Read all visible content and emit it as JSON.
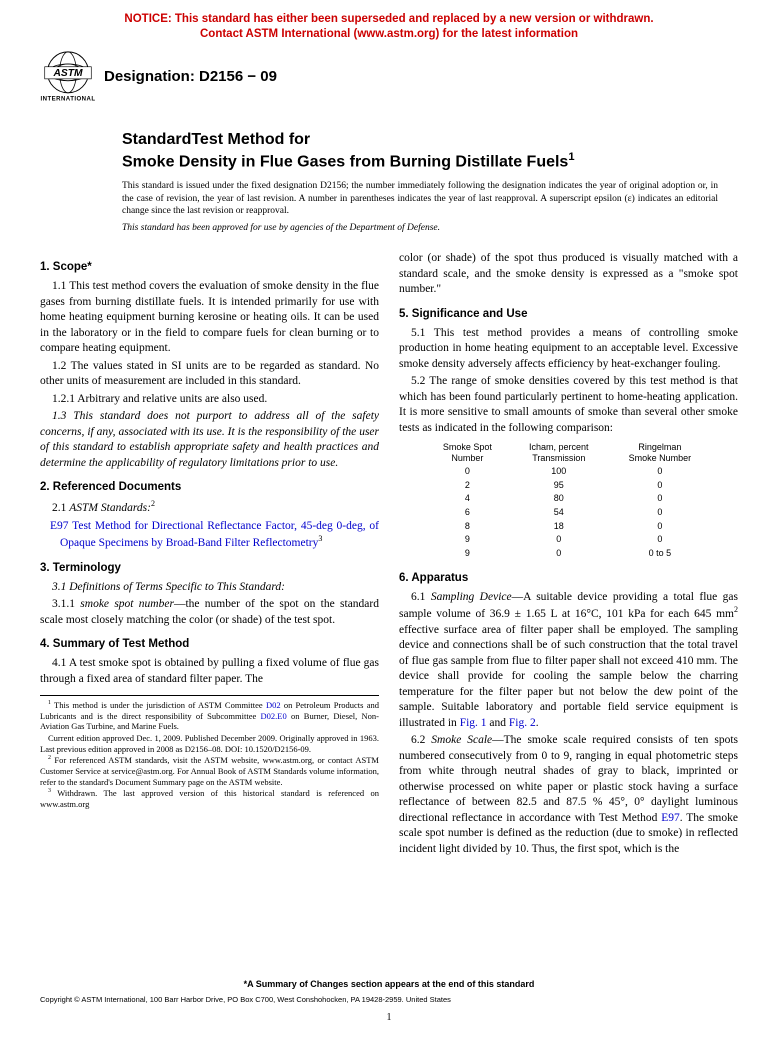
{
  "notice": {
    "line1": "NOTICE: This standard has either been superseded and replaced by a new version or withdrawn.",
    "line2": "Contact ASTM International (www.astm.org) for the latest information"
  },
  "designation": "Designation: D2156 − 09",
  "title": {
    "l1": "StandardTest Method for",
    "l2": "Smoke Density in Flue Gases from Burning Distillate Fuels",
    "sup": "1"
  },
  "intro": "This standard is issued under the fixed designation D2156; the number immediately following the designation indicates the year of original adoption or, in the case of revision, the year of last revision. A number in parentheses indicates the year of last reapproval. A superscript epsilon (ε) indicates an editorial change since the last revision or reapproval.",
  "intro2": "This standard has been approved for use by agencies of the Department of Defense.",
  "sections": {
    "scope": {
      "head": "1. Scope*",
      "p1": "1.1 This test method covers the evaluation of smoke density in the flue gases from burning distillate fuels. It is intended primarily for use with home heating equipment burning kerosine or heating oils. It can be used in the laboratory or in the field to compare fuels for clean burning or to compare heating equipment.",
      "p2": "1.2 The values stated in SI units are to be regarded as standard. No other units of measurement are included in this standard.",
      "p2a": "1.2.1 Arbitrary and relative units are also used.",
      "p3": "1.3 This standard does not purport to address all of the safety concerns, if any, associated with its use. It is the responsibility of the user of this standard to establish appropriate safety and health practices and determine the applicability of regulatory limitations prior to use."
    },
    "refdocs": {
      "head": "2. Referenced Documents",
      "p1a": "2.1 ",
      "p1b": "ASTM Standards:",
      "p1sup": "2",
      "e97_label": "E97",
      "e97_text": " Test Method for Directional Reflectance Factor, 45-deg 0-deg, of Opaque Specimens by Broad-Band Filter Reflectometry",
      "e97_sup": "3"
    },
    "term": {
      "head": "3. Terminology",
      "p1": "3.1 Definitions of Terms Specific to This Standard:",
      "p2a": "3.1.1 ",
      "p2b": "smoke spot number",
      "p2c": "—the number of the spot on the standard scale most closely matching the color (or shade) of the test spot."
    },
    "summary": {
      "head": "4. Summary of Test Method",
      "p1": "4.1 A test smoke spot is obtained by pulling a fixed volume of flue gas through a fixed area of standard filter paper. The",
      "p1_cont": "color (or shade) of the spot thus produced is visually matched with a standard scale, and the smoke density is expressed as a \"smoke spot number.\""
    },
    "sig": {
      "head": "5. Significance and Use",
      "p1": "5.1 This test method provides a means of controlling smoke production in home heating equipment to an acceptable level. Excessive smoke density adversely affects efficiency by heat-exchanger fouling.",
      "p2": "5.2 The range of smoke densities covered by this test method is that which has been found particularly pertinent to home-heating application. It is more sensitive to small amounts of smoke than several other smoke tests as indicated in the following comparison:"
    },
    "app": {
      "head": "6. Apparatus",
      "p1a": "6.1 ",
      "p1b": "Sampling Device",
      "p1c": "—A suitable device providing a total flue gas sample volume of 36.9 ± 1.65 L at 16°C, 101 kPa for each 645 mm",
      "p1d": " effective surface area of filter paper shall be employed. The sampling device and connections shall be of such construction that the total travel of flue gas sample from flue to filter paper shall not exceed 410 mm. The device shall provide for cooling the sample below the charring temperature for the filter paper but not below the dew point of the sample. Suitable laboratory and portable field service equipment is illustrated in ",
      "fig1": "Fig. 1",
      "and": " and ",
      "fig2": "Fig. 2",
      "dot": ".",
      "p2a": "6.2 ",
      "p2b": "Smoke Scale",
      "p2c": "—The smoke scale required consists of ten spots numbered consecutively from 0 to 9, ranging in equal photometric steps from white through neutral shades of gray to black, imprinted or otherwise processed on white paper or plastic stock having a surface reflectance of between 82.5 and 87.5 % 45°, 0° daylight luminous directional reflectance in accordance with Test Method ",
      "e97": "E97",
      "p2d": ". The smoke scale spot number is defined as the reduction (due to smoke) in reflected incident light divided by 10. Thus, the first spot, which is the"
    }
  },
  "comparison": {
    "headers": {
      "c1a": "Smoke Spot",
      "c1b": "Number",
      "c2a": "Icham, percent",
      "c2b": "Transmission",
      "c3a": "Ringelman",
      "c3b": "Smoke Number"
    },
    "rows": [
      [
        "0",
        "100",
        "0"
      ],
      [
        "2",
        "95",
        "0"
      ],
      [
        "4",
        "80",
        "0"
      ],
      [
        "6",
        "54",
        "0"
      ],
      [
        "8",
        "18",
        "0"
      ],
      [
        "9",
        "0",
        "0"
      ],
      [
        "9",
        "0",
        "0 to 5"
      ]
    ]
  },
  "footnotes": {
    "f1a": " This method is under the jurisdiction of ASTM Committee ",
    "d02": "D02",
    "f1b": " on Petroleum Products and Lubricants and is the direct responsibility of Subcommittee ",
    "d02e0": "D02.E0",
    "f1c": " on Burner, Diesel, Non-Aviation Gas Turbine, and Marine Fuels.",
    "f1d": "Current edition approved Dec. 1, 2009. Published December 2009. Originally approved in 1963. Last previous edition approved in 2008 as D2156–08. DOI: 10.1520/D2156-09.",
    "f2": " For referenced ASTM standards, visit the ASTM website, www.astm.org, or contact ASTM Customer Service at service@astm.org. For Annual Book of ASTM Standards volume information, refer to the standard's Document Summary page on the ASTM website.",
    "f3": " Withdrawn. The last approved version of this historical standard is referenced on www.astm.org"
  },
  "footer": {
    "summary": "*A Summary of Changes section appears at the end of this standard",
    "copy": "Copyright © ASTM International, 100 Barr Harbor Drive, PO Box C700, West Conshohocken, PA 19428-2959. United States",
    "page": "1"
  }
}
